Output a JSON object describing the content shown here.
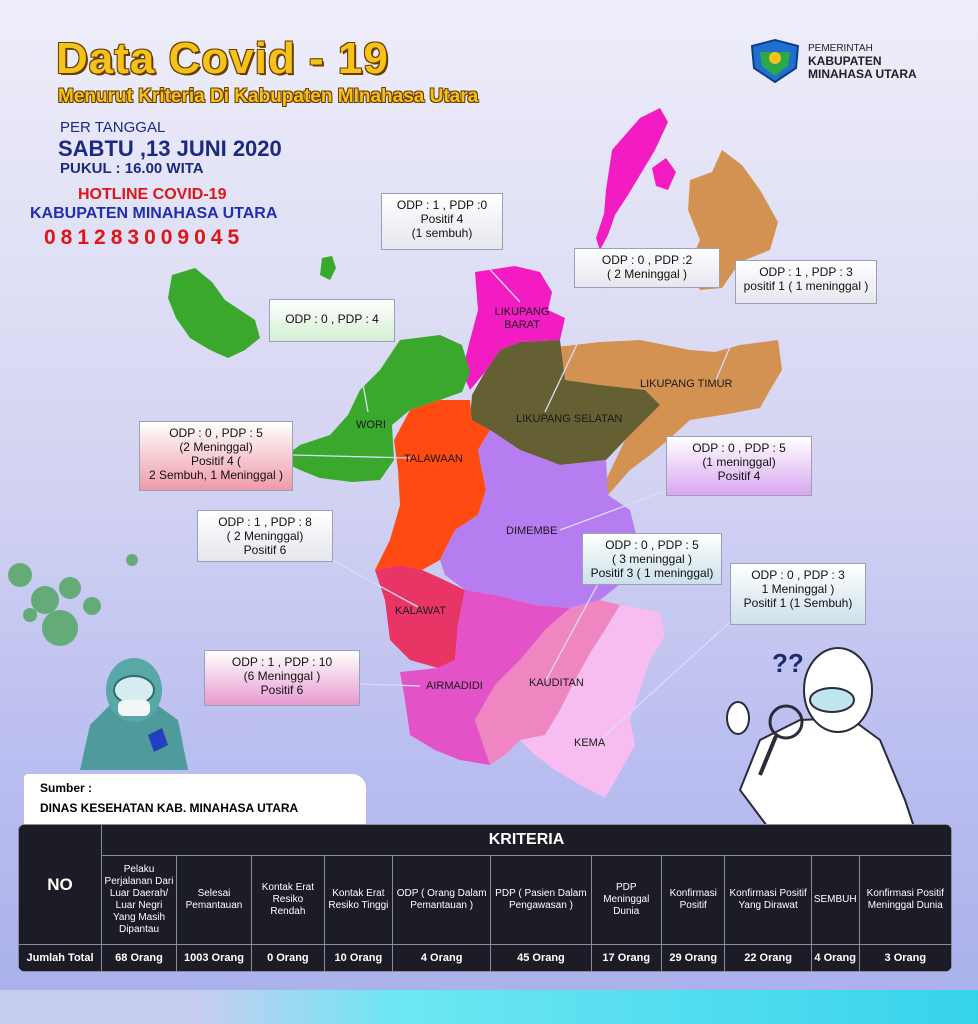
{
  "header": {
    "title": "Data Covid - 19",
    "subtitle": "Menurut Kriteria Di Kabupaten MInahasa Utara",
    "per_tanggal": "PER TANGGAL",
    "date": "SABTU ,13 JUNI 2020",
    "time": "PUKUL : 16.00 WITA",
    "hotline_label": "HOTLINE COVID-19",
    "hotline_region": "KABUPATEN MINAHASA UTARA",
    "hotline_number": "081283009045"
  },
  "logo": {
    "line1": "PEMERINTAH",
    "line2": "KABUPATEN",
    "line3": "MINAHASA UTARA"
  },
  "colors": {
    "wori": "#3aa82c",
    "talawaan": "#ff4a12",
    "likupang_barat": "#f21cc2",
    "likupang_selatan": "#655f34",
    "likupang_timur": "#d49252",
    "dimembe": "#b67df0",
    "kalawat": "#e93566",
    "airmadidi": "#e352c7",
    "kauditan": "#ef86c2",
    "kema": "#f7bdf0"
  },
  "regions": {
    "likupang_barat": "LIKUPANG\nBARAT",
    "likupang_selatan": "LIKUPANG SELATAN",
    "likupang_timur": "LIKUPANG TIMUR",
    "wori": "WORI",
    "talawaan": "TALAWAAN",
    "dimembe": "DIMEMBE",
    "kalawat": "KALAWAT",
    "airmadidi": "AIRMADIDI",
    "kauditan": "KAUDITAN",
    "kema": "KEMA"
  },
  "callouts": {
    "likupang_barat": [
      "ODP : 1 , PDP :0",
      "Positif 4",
      "(1 sembuh)"
    ],
    "likupang_selatan": [
      "ODP : 0 , PDP :2",
      "( 2 Meninggal )"
    ],
    "likupang_timur": [
      "ODP : 1 , PDP : 3",
      "positif 1 ( 1 meninggal )"
    ],
    "wori": [
      "ODP : 0 , PDP : 4"
    ],
    "talawaan": [
      "ODP : 0 , PDP : 5",
      "(2 Meninggal)",
      "Positif 4 (",
      "2 Sembuh, 1 Meninggal )"
    ],
    "dimembe": [
      "ODP : 0 , PDP : 5",
      "(1 meninggal)",
      "Positif 4"
    ],
    "kalawat": [
      "ODP : 1 , PDP : 8",
      "( 2 Meninggal)",
      "Positif 6"
    ],
    "kauditan": [
      "ODP : 0 , PDP : 5",
      "( 3 meninggal )",
      "Positif 3 ( 1 meninggal)"
    ],
    "kema": [
      "ODP : 0 , PDP : 3",
      "1 Meninggal )",
      "Positif 1 (1 Sembuh)"
    ],
    "airmadidi": [
      "ODP : 1 , PDP : 10",
      "(6 Meninggal )",
      "Positif 6"
    ]
  },
  "source": {
    "label": "Sumber :",
    "value": "DINAS KESEHATAN KAB. MINAHASA UTARA"
  },
  "table": {
    "title": "KRITERIA",
    "no": "NO",
    "columns": [
      "Pelaku Perjalanan Dari Luar Daerah/ Luar Negri Yang Masih Dipantau",
      "Selesai Pemantauan",
      "Kontak Erat Resiko Rendah",
      "Kontak Erat Resiko Tinggi",
      "ODP ( Orang Dalam Pemantauan )",
      "PDP ( Pasien Dalam Pengawasan )",
      "PDP Meninggal Dunia",
      "Konfirmasi Positif",
      "Konfirmasi Positif Yang Dirawat",
      "SEMBUH",
      "Konfirmasi Positif Meninggal Dunia"
    ],
    "row_label": "Jumlah Total",
    "values": [
      "68 Orang",
      "1003 Orang",
      "0 Orang",
      "10 Orang",
      "4 Orang",
      "45 Orang",
      "17 Orang",
      "29 Orang",
      "22 Orang",
      "4 Orang",
      "3 Orang"
    ]
  }
}
